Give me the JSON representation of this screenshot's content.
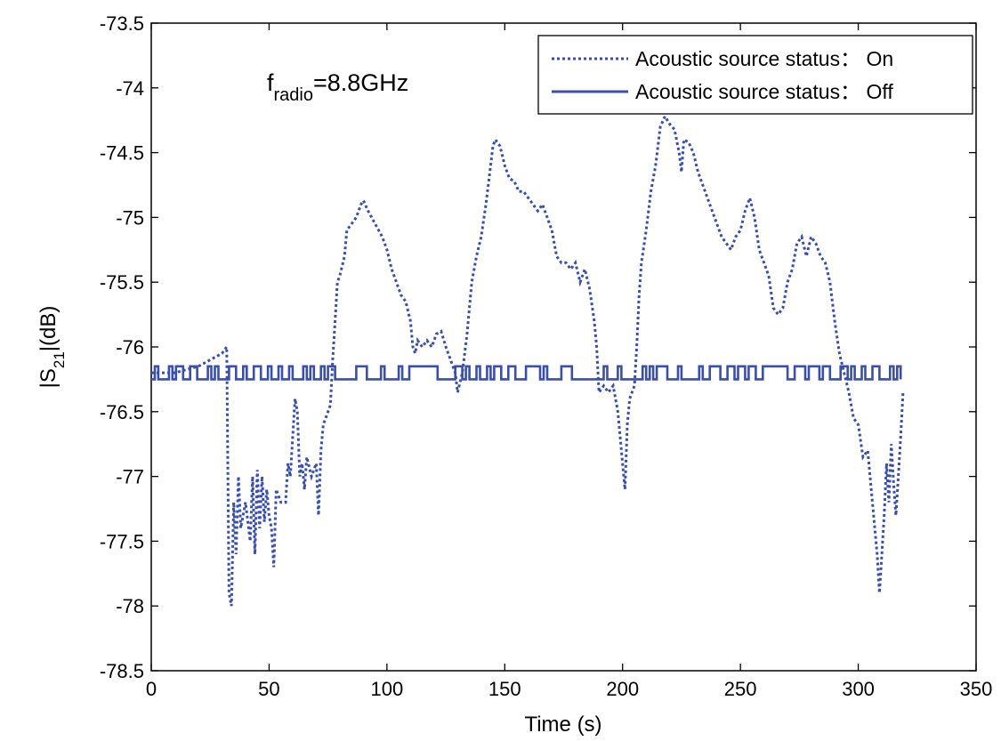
{
  "chart_data": {
    "type": "line",
    "title": "",
    "xlabel": "Time (s)",
    "ylabel_parts": {
      "pre": "|S",
      "sub": "21",
      "post": "|(dB)"
    },
    "xlim": [
      0,
      350
    ],
    "ylim": [
      -78.5,
      -73.5
    ],
    "xticks": [
      0,
      50,
      100,
      150,
      200,
      250,
      300,
      350
    ],
    "yticks": [
      -73.5,
      -74,
      -74.5,
      -75,
      -75.5,
      -76,
      -76.5,
      -77,
      -77.5,
      -78,
      -78.5
    ],
    "grid": false,
    "legend_position": "top-right",
    "annotation": {
      "main": "f",
      "sub": "radio",
      "rest": "=8.8GHz"
    },
    "series": [
      {
        "name": "Acoustic source status： On",
        "style": "dotted",
        "color": "#3a4fa8",
        "points": [
          [
            0,
            -76.2
          ],
          [
            10,
            -76.2
          ],
          [
            20,
            -76.15
          ],
          [
            25,
            -76.1
          ],
          [
            30,
            -76.05
          ],
          [
            32,
            -76.0
          ],
          [
            33,
            -77.9
          ],
          [
            34,
            -78.0
          ],
          [
            35,
            -77.2
          ],
          [
            36,
            -77.6
          ],
          [
            37,
            -77.0
          ],
          [
            38,
            -77.4
          ],
          [
            40,
            -77.2
          ],
          [
            42,
            -77.5
          ],
          [
            43,
            -77.0
          ],
          [
            44,
            -77.6
          ],
          [
            45,
            -76.95
          ],
          [
            46,
            -77.4
          ],
          [
            47,
            -77.0
          ],
          [
            48,
            -77.35
          ],
          [
            49,
            -77.1
          ],
          [
            50,
            -77.3
          ],
          [
            51,
            -77.4
          ],
          [
            52,
            -77.7
          ],
          [
            53,
            -77.1
          ],
          [
            55,
            -77.2
          ],
          [
            57,
            -77.2
          ],
          [
            58,
            -76.9
          ],
          [
            59,
            -77.0
          ],
          [
            60,
            -76.7
          ],
          [
            61,
            -76.4
          ],
          [
            62,
            -76.5
          ],
          [
            63,
            -77.0
          ],
          [
            64,
            -76.9
          ],
          [
            65,
            -77.1
          ],
          [
            66,
            -76.85
          ],
          [
            68,
            -77.0
          ],
          [
            70,
            -76.9
          ],
          [
            71,
            -77.3
          ],
          [
            72,
            -76.8
          ],
          [
            73,
            -76.6
          ],
          [
            74,
            -76.55
          ],
          [
            76,
            -76.45
          ],
          [
            77,
            -76.1
          ],
          [
            78,
            -75.8
          ],
          [
            79,
            -75.5
          ],
          [
            80,
            -75.45
          ],
          [
            82,
            -75.3
          ],
          [
            83,
            -75.1
          ],
          [
            85,
            -75.05
          ],
          [
            87,
            -75.0
          ],
          [
            89,
            -74.9
          ],
          [
            90,
            -74.87
          ],
          [
            92,
            -74.95
          ],
          [
            95,
            -75.05
          ],
          [
            98,
            -75.15
          ],
          [
            100,
            -75.25
          ],
          [
            102,
            -75.4
          ],
          [
            104,
            -75.5
          ],
          [
            106,
            -75.6
          ],
          [
            108,
            -75.65
          ],
          [
            110,
            -75.8
          ],
          [
            111,
            -76.0
          ],
          [
            112,
            -76.05
          ],
          [
            113,
            -75.95
          ],
          [
            115,
            -76.0
          ],
          [
            117,
            -75.95
          ],
          [
            119,
            -76.0
          ],
          [
            121,
            -75.9
          ],
          [
            123,
            -75.88
          ],
          [
            125,
            -76.0
          ],
          [
            127,
            -76.1
          ],
          [
            129,
            -76.2
          ],
          [
            130,
            -76.35
          ],
          [
            132,
            -76.2
          ],
          [
            134,
            -75.9
          ],
          [
            136,
            -75.5
          ],
          [
            138,
            -75.3
          ],
          [
            140,
            -75.15
          ],
          [
            142,
            -74.9
          ],
          [
            144,
            -74.6
          ],
          [
            145,
            -74.45
          ],
          [
            146,
            -74.4
          ],
          [
            148,
            -74.45
          ],
          [
            150,
            -74.6
          ],
          [
            152,
            -74.7
          ],
          [
            154,
            -74.72
          ],
          [
            156,
            -74.8
          ],
          [
            158,
            -74.8
          ],
          [
            160,
            -74.85
          ],
          [
            162,
            -74.9
          ],
          [
            164,
            -74.95
          ],
          [
            166,
            -74.9
          ],
          [
            168,
            -75.0
          ],
          [
            170,
            -75.1
          ],
          [
            172,
            -75.3
          ],
          [
            174,
            -75.35
          ],
          [
            176,
            -75.35
          ],
          [
            178,
            -75.4
          ],
          [
            180,
            -75.35
          ],
          [
            182,
            -75.5
          ],
          [
            184,
            -75.4
          ],
          [
            186,
            -75.55
          ],
          [
            188,
            -75.8
          ],
          [
            189,
            -76.0
          ],
          [
            190,
            -76.35
          ],
          [
            192,
            -76.3
          ],
          [
            194,
            -76.35
          ],
          [
            196,
            -76.3
          ],
          [
            198,
            -76.5
          ],
          [
            200,
            -76.9
          ],
          [
            201,
            -77.1
          ],
          [
            202,
            -76.6
          ],
          [
            203,
            -76.4
          ],
          [
            205,
            -76.3
          ],
          [
            206,
            -76.0
          ],
          [
            207,
            -75.6
          ],
          [
            208,
            -75.35
          ],
          [
            210,
            -75.1
          ],
          [
            212,
            -74.8
          ],
          [
            214,
            -74.6
          ],
          [
            216,
            -74.3
          ],
          [
            218,
            -74.22
          ],
          [
            220,
            -74.28
          ],
          [
            222,
            -74.32
          ],
          [
            224,
            -74.5
          ],
          [
            225,
            -74.65
          ],
          [
            226,
            -74.4
          ],
          [
            228,
            -74.42
          ],
          [
            230,
            -74.5
          ],
          [
            232,
            -74.65
          ],
          [
            234,
            -74.75
          ],
          [
            236,
            -74.85
          ],
          [
            238,
            -74.95
          ],
          [
            240,
            -75.05
          ],
          [
            242,
            -75.15
          ],
          [
            244,
            -75.2
          ],
          [
            246,
            -75.25
          ],
          [
            248,
            -75.15
          ],
          [
            250,
            -75.1
          ],
          [
            252,
            -74.95
          ],
          [
            254,
            -74.85
          ],
          [
            256,
            -75.0
          ],
          [
            258,
            -75.25
          ],
          [
            260,
            -75.35
          ],
          [
            262,
            -75.45
          ],
          [
            264,
            -75.7
          ],
          [
            266,
            -75.75
          ],
          [
            268,
            -75.7
          ],
          [
            270,
            -75.5
          ],
          [
            272,
            -75.4
          ],
          [
            274,
            -75.2
          ],
          [
            276,
            -75.15
          ],
          [
            278,
            -75.3
          ],
          [
            280,
            -75.15
          ],
          [
            282,
            -75.2
          ],
          [
            284,
            -75.3
          ],
          [
            286,
            -75.35
          ],
          [
            288,
            -75.5
          ],
          [
            290,
            -75.8
          ],
          [
            292,
            -76.05
          ],
          [
            294,
            -76.2
          ],
          [
            296,
            -76.35
          ],
          [
            298,
            -76.55
          ],
          [
            300,
            -76.6
          ],
          [
            302,
            -76.85
          ],
          [
            304,
            -76.8
          ],
          [
            306,
            -77.2
          ],
          [
            308,
            -77.6
          ],
          [
            309,
            -77.9
          ],
          [
            310,
            -77.6
          ],
          [
            311,
            -77.3
          ],
          [
            312,
            -76.9
          ],
          [
            313,
            -77.2
          ],
          [
            314,
            -76.75
          ],
          [
            315,
            -77.05
          ],
          [
            316,
            -77.3
          ],
          [
            317,
            -77.0
          ],
          [
            318,
            -76.7
          ],
          [
            319,
            -76.35
          ]
        ]
      },
      {
        "name": "Acoustic source status： Off",
        "style": "solid",
        "color": "#3a4fa8",
        "base": -76.25,
        "high": -76.15,
        "x_start": 0,
        "x_end": 319,
        "step": 1.5
      }
    ]
  }
}
